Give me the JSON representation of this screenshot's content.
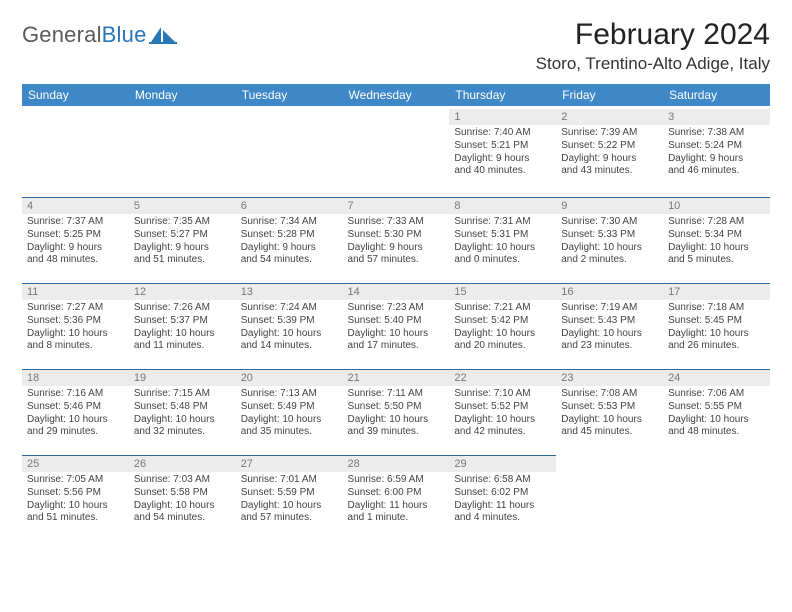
{
  "brand": {
    "part1": "General",
    "part2": "Blue"
  },
  "title": "February 2024",
  "location": "Storo, Trentino-Alto Adige, Italy",
  "colors": {
    "header_bg": "#3e88c7",
    "header_text": "#ffffff",
    "daynum_bg": "#ececec",
    "daynum_text": "#777777",
    "rule": "#2a6aa2",
    "body_text": "#444444",
    "brand_gray": "#5a5a5a",
    "brand_blue": "#2a77b8",
    "page_bg": "#ffffff"
  },
  "day_names": [
    "Sunday",
    "Monday",
    "Tuesday",
    "Wednesday",
    "Thursday",
    "Friday",
    "Saturday"
  ],
  "weeks": [
    [
      null,
      null,
      null,
      null,
      {
        "n": "1",
        "sr": "Sunrise: 7:40 AM",
        "ss": "Sunset: 5:21 PM",
        "d1": "Daylight: 9 hours",
        "d2": "and 40 minutes."
      },
      {
        "n": "2",
        "sr": "Sunrise: 7:39 AM",
        "ss": "Sunset: 5:22 PM",
        "d1": "Daylight: 9 hours",
        "d2": "and 43 minutes."
      },
      {
        "n": "3",
        "sr": "Sunrise: 7:38 AM",
        "ss": "Sunset: 5:24 PM",
        "d1": "Daylight: 9 hours",
        "d2": "and 46 minutes."
      }
    ],
    [
      {
        "n": "4",
        "sr": "Sunrise: 7:37 AM",
        "ss": "Sunset: 5:25 PM",
        "d1": "Daylight: 9 hours",
        "d2": "and 48 minutes."
      },
      {
        "n": "5",
        "sr": "Sunrise: 7:35 AM",
        "ss": "Sunset: 5:27 PM",
        "d1": "Daylight: 9 hours",
        "d2": "and 51 minutes."
      },
      {
        "n": "6",
        "sr": "Sunrise: 7:34 AM",
        "ss": "Sunset: 5:28 PM",
        "d1": "Daylight: 9 hours",
        "d2": "and 54 minutes."
      },
      {
        "n": "7",
        "sr": "Sunrise: 7:33 AM",
        "ss": "Sunset: 5:30 PM",
        "d1": "Daylight: 9 hours",
        "d2": "and 57 minutes."
      },
      {
        "n": "8",
        "sr": "Sunrise: 7:31 AM",
        "ss": "Sunset: 5:31 PM",
        "d1": "Daylight: 10 hours",
        "d2": "and 0 minutes."
      },
      {
        "n": "9",
        "sr": "Sunrise: 7:30 AM",
        "ss": "Sunset: 5:33 PM",
        "d1": "Daylight: 10 hours",
        "d2": "and 2 minutes."
      },
      {
        "n": "10",
        "sr": "Sunrise: 7:28 AM",
        "ss": "Sunset: 5:34 PM",
        "d1": "Daylight: 10 hours",
        "d2": "and 5 minutes."
      }
    ],
    [
      {
        "n": "11",
        "sr": "Sunrise: 7:27 AM",
        "ss": "Sunset: 5:36 PM",
        "d1": "Daylight: 10 hours",
        "d2": "and 8 minutes."
      },
      {
        "n": "12",
        "sr": "Sunrise: 7:26 AM",
        "ss": "Sunset: 5:37 PM",
        "d1": "Daylight: 10 hours",
        "d2": "and 11 minutes."
      },
      {
        "n": "13",
        "sr": "Sunrise: 7:24 AM",
        "ss": "Sunset: 5:39 PM",
        "d1": "Daylight: 10 hours",
        "d2": "and 14 minutes."
      },
      {
        "n": "14",
        "sr": "Sunrise: 7:23 AM",
        "ss": "Sunset: 5:40 PM",
        "d1": "Daylight: 10 hours",
        "d2": "and 17 minutes."
      },
      {
        "n": "15",
        "sr": "Sunrise: 7:21 AM",
        "ss": "Sunset: 5:42 PM",
        "d1": "Daylight: 10 hours",
        "d2": "and 20 minutes."
      },
      {
        "n": "16",
        "sr": "Sunrise: 7:19 AM",
        "ss": "Sunset: 5:43 PM",
        "d1": "Daylight: 10 hours",
        "d2": "and 23 minutes."
      },
      {
        "n": "17",
        "sr": "Sunrise: 7:18 AM",
        "ss": "Sunset: 5:45 PM",
        "d1": "Daylight: 10 hours",
        "d2": "and 26 minutes."
      }
    ],
    [
      {
        "n": "18",
        "sr": "Sunrise: 7:16 AM",
        "ss": "Sunset: 5:46 PM",
        "d1": "Daylight: 10 hours",
        "d2": "and 29 minutes."
      },
      {
        "n": "19",
        "sr": "Sunrise: 7:15 AM",
        "ss": "Sunset: 5:48 PM",
        "d1": "Daylight: 10 hours",
        "d2": "and 32 minutes."
      },
      {
        "n": "20",
        "sr": "Sunrise: 7:13 AM",
        "ss": "Sunset: 5:49 PM",
        "d1": "Daylight: 10 hours",
        "d2": "and 35 minutes."
      },
      {
        "n": "21",
        "sr": "Sunrise: 7:11 AM",
        "ss": "Sunset: 5:50 PM",
        "d1": "Daylight: 10 hours",
        "d2": "and 39 minutes."
      },
      {
        "n": "22",
        "sr": "Sunrise: 7:10 AM",
        "ss": "Sunset: 5:52 PM",
        "d1": "Daylight: 10 hours",
        "d2": "and 42 minutes."
      },
      {
        "n": "23",
        "sr": "Sunrise: 7:08 AM",
        "ss": "Sunset: 5:53 PM",
        "d1": "Daylight: 10 hours",
        "d2": "and 45 minutes."
      },
      {
        "n": "24",
        "sr": "Sunrise: 7:06 AM",
        "ss": "Sunset: 5:55 PM",
        "d1": "Daylight: 10 hours",
        "d2": "and 48 minutes."
      }
    ],
    [
      {
        "n": "25",
        "sr": "Sunrise: 7:05 AM",
        "ss": "Sunset: 5:56 PM",
        "d1": "Daylight: 10 hours",
        "d2": "and 51 minutes."
      },
      {
        "n": "26",
        "sr": "Sunrise: 7:03 AM",
        "ss": "Sunset: 5:58 PM",
        "d1": "Daylight: 10 hours",
        "d2": "and 54 minutes."
      },
      {
        "n": "27",
        "sr": "Sunrise: 7:01 AM",
        "ss": "Sunset: 5:59 PM",
        "d1": "Daylight: 10 hours",
        "d2": "and 57 minutes."
      },
      {
        "n": "28",
        "sr": "Sunrise: 6:59 AM",
        "ss": "Sunset: 6:00 PM",
        "d1": "Daylight: 11 hours",
        "d2": "and 1 minute."
      },
      {
        "n": "29",
        "sr": "Sunrise: 6:58 AM",
        "ss": "Sunset: 6:02 PM",
        "d1": "Daylight: 11 hours",
        "d2": "and 4 minutes."
      },
      null,
      null
    ]
  ]
}
